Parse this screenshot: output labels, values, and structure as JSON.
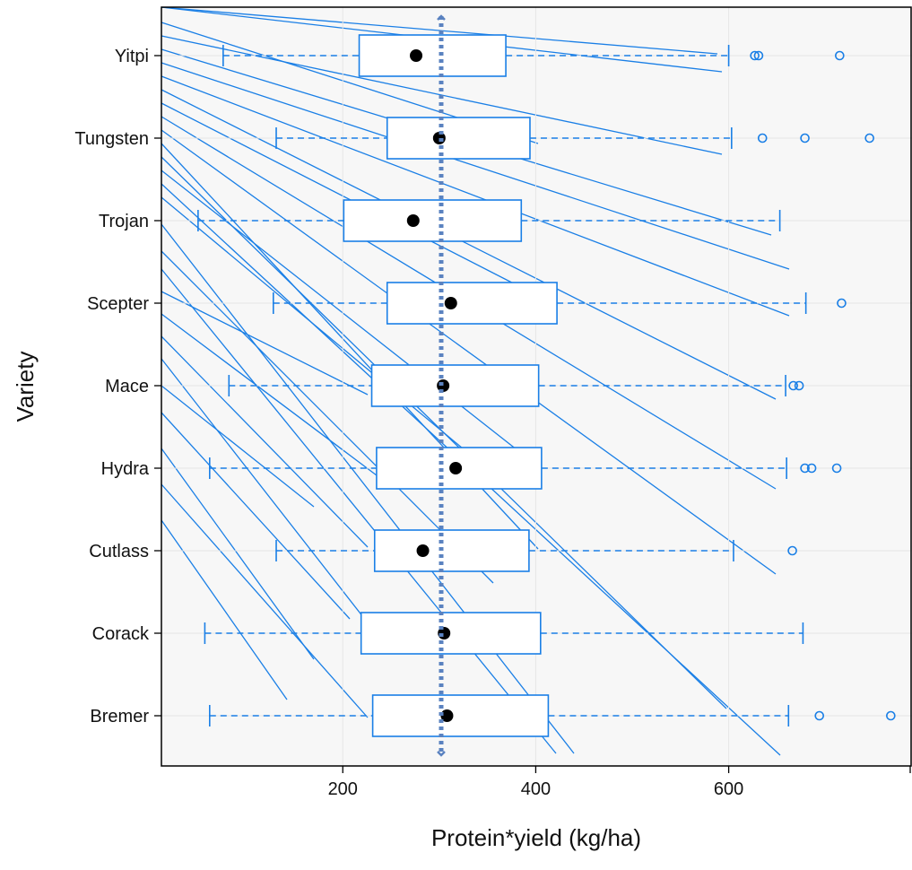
{
  "chart_data": {
    "type": "box",
    "xlabel": "Protein*yield (kg/ha)",
    "ylabel": "Variety",
    "xlim": [
      12,
      790
    ],
    "xticks": [
      200,
      400,
      600
    ],
    "grid": true,
    "categories": [
      "Bremer",
      "Corack",
      "Cutlass",
      "Hydra",
      "Mace",
      "Scepter",
      "Trojan",
      "Tungsten",
      "Yitpi"
    ],
    "boxes": [
      {
        "variety": "Bremer",
        "whisker_low": 62,
        "q1": 231,
        "median": 308,
        "q3": 413,
        "whisker_high": 662,
        "outliers": [
          694,
          768
        ]
      },
      {
        "variety": "Corack",
        "whisker_low": 57,
        "q1": 219,
        "median": 305,
        "q3": 405,
        "whisker_high": 677,
        "outliers": []
      },
      {
        "variety": "Cutlass",
        "whisker_low": 131,
        "q1": 233,
        "median": 283,
        "q3": 393,
        "whisker_high": 605,
        "outliers": [
          666
        ]
      },
      {
        "variety": "Hydra",
        "whisker_low": 62,
        "q1": 235,
        "median": 317,
        "q3": 406,
        "whisker_high": 660,
        "outliers": [
          679,
          686,
          712
        ]
      },
      {
        "variety": "Mace",
        "whisker_low": 82,
        "q1": 230,
        "median": 304,
        "q3": 403,
        "whisker_high": 659,
        "outliers": [
          667,
          673
        ]
      },
      {
        "variety": "Scepter",
        "whisker_low": 128,
        "q1": 246,
        "median": 312,
        "q3": 422,
        "whisker_high": 680,
        "outliers": [
          717
        ]
      },
      {
        "variety": "Trojan",
        "whisker_low": 50,
        "q1": 201,
        "median": 273,
        "q3": 385,
        "whisker_high": 653,
        "outliers": []
      },
      {
        "variety": "Tungsten",
        "whisker_low": 131,
        "q1": 246,
        "median": 300,
        "q3": 394,
        "whisker_high": 603,
        "outliers": [
          635,
          679,
          746
        ]
      },
      {
        "variety": "Yitpi",
        "whisker_low": 76,
        "q1": 217,
        "median": 276,
        "q3": 369,
        "whisker_high": 600,
        "outliers": [
          627,
          631,
          715
        ]
      }
    ],
    "reference_line": {
      "x": 302,
      "style": "dotted-double-arrow"
    },
    "colors": {
      "box": "#1a7fe6",
      "median": "#000000",
      "reference": "#5a82c0",
      "grid": "#e6e6e6",
      "panel": "#f7f7f7"
    }
  }
}
